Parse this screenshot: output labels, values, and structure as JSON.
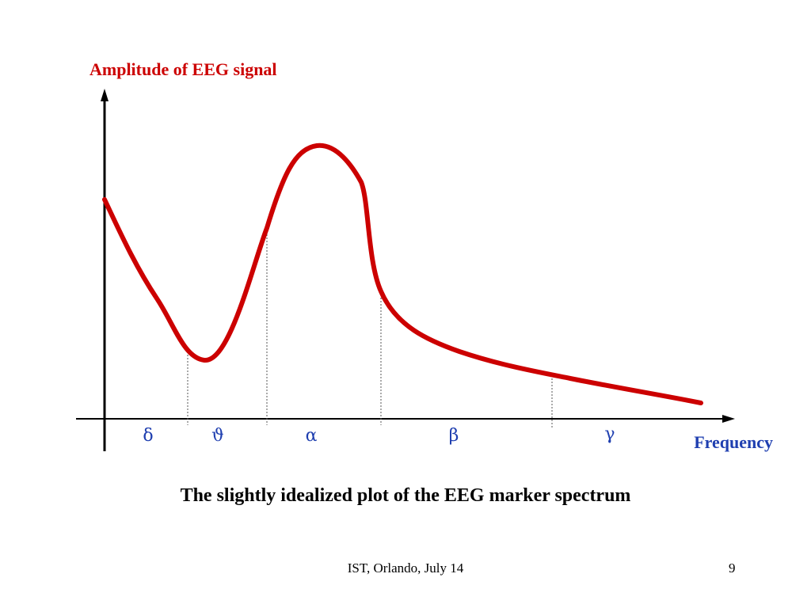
{
  "diagram": {
    "y_axis_label": "Amplitude of EEG signal",
    "x_axis_label": "Frequency",
    "bands": [
      {
        "symbol": "δ",
        "name": "delta"
      },
      {
        "symbol": "ϑ",
        "name": "theta"
      },
      {
        "symbol": "α",
        "name": "alpha"
      },
      {
        "symbol": "β",
        "name": "beta"
      },
      {
        "symbol": "γ",
        "name": "gamma"
      }
    ],
    "colors": {
      "curve": "#cc0000",
      "axis_title_y": "#cc0000",
      "axis_title_x": "#1f3fb0",
      "band_labels": "#1f3fb0",
      "axes": "#000000"
    }
  },
  "caption": "The slightly idealized plot of the EEG marker spectrum",
  "footer": {
    "text": "IST, Orlando, July 14",
    "page_number": "9"
  }
}
